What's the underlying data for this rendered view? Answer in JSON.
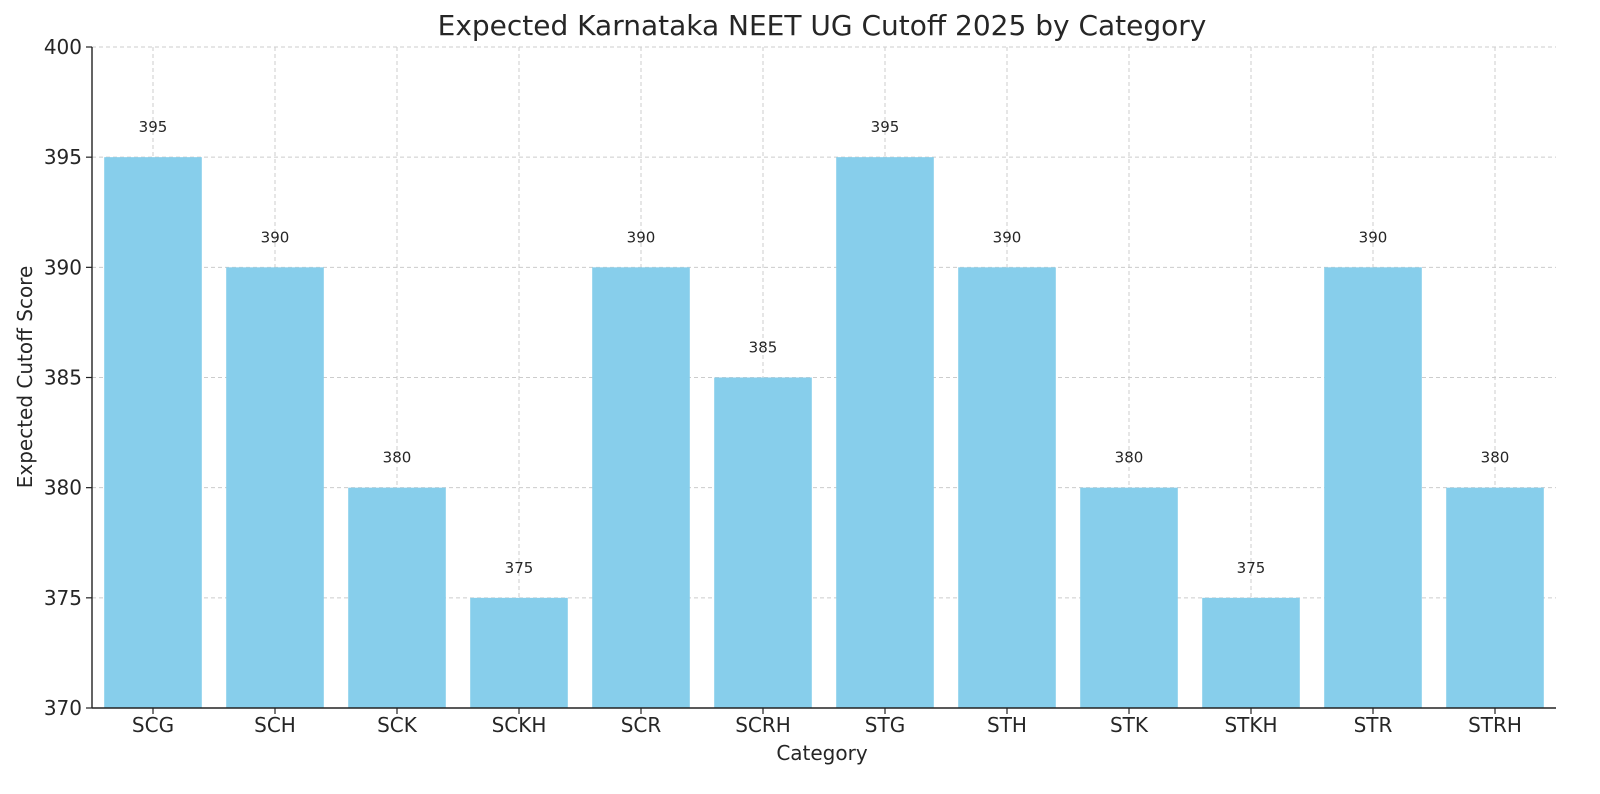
{
  "chart_data": {
    "type": "bar",
    "title": "Expected Karnataka NEET UG Cutoff 2025 by Category",
    "xlabel": "Category",
    "ylabel": "Expected Cutoff Score",
    "categories": [
      "SCG",
      "SCH",
      "SCK",
      "SCKH",
      "SCR",
      "SCRH",
      "STG",
      "STH",
      "STK",
      "STKH",
      "STR",
      "STRH"
    ],
    "values": [
      395,
      390,
      380,
      375,
      390,
      385,
      395,
      390,
      380,
      375,
      390,
      380
    ],
    "ylim": [
      370,
      400
    ],
    "yticks": [
      370,
      375,
      380,
      385,
      390,
      395,
      400
    ],
    "grid": true,
    "bar_color": "#87ceeb",
    "data_labels": true
  }
}
